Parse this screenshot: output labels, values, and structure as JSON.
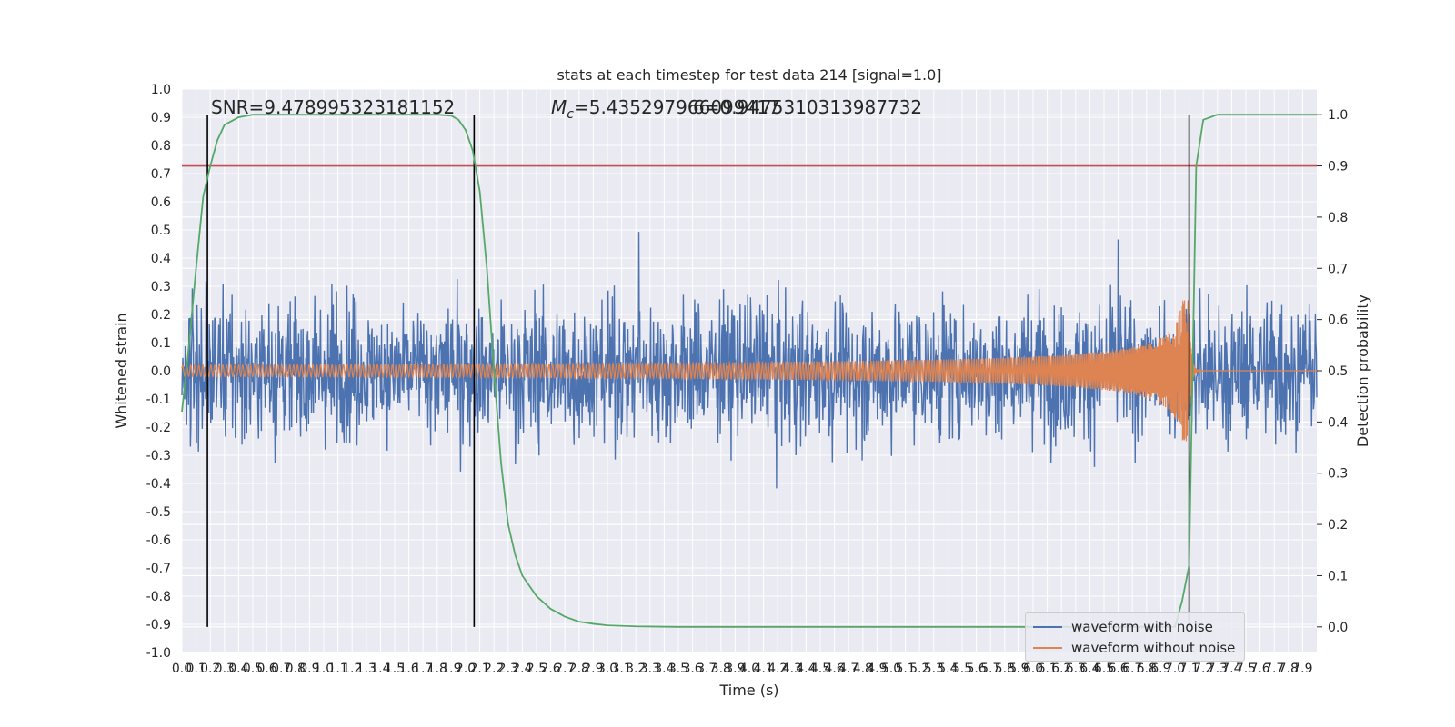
{
  "chart_data": {
    "type": "line",
    "title": "stats at each timestep for test data 214 [signal=1.0]",
    "xlabel": "Time (s)",
    "ylabel_left": "Whitened strain",
    "ylabel_right": "Detection probability",
    "xlim": [
      0.0,
      8.0
    ],
    "ylim_left": [
      -1.0,
      1.0
    ],
    "ylim_right": [
      -0.05,
      1.05
    ],
    "x_ticks": [
      "0.0",
      "0.1",
      "0.2",
      "0.3",
      "0.4",
      "0.5",
      "0.6",
      "0.7",
      "0.8",
      "0.9",
      "1.0",
      "1.1",
      "1.2",
      "1.3",
      "1.4",
      "1.5",
      "1.6",
      "1.7",
      "1.8",
      "1.9",
      "2.0",
      "2.1",
      "2.2",
      "2.3",
      "2.4",
      "2.5",
      "2.6",
      "2.7",
      "2.8",
      "2.9",
      "3.0",
      "3.1",
      "3.2",
      "3.3",
      "3.4",
      "3.5",
      "3.6",
      "3.7",
      "3.8",
      "3.9",
      "4.0",
      "4.1",
      "4.2",
      "4.3",
      "4.4",
      "4.5",
      "4.6",
      "4.7",
      "4.8",
      "4.9",
      "5.0",
      "5.1",
      "5.2",
      "5.3",
      "5.4",
      "5.5",
      "5.6",
      "5.7",
      "5.8",
      "5.9",
      "6.0",
      "6.1",
      "6.2",
      "6.3",
      "6.4",
      "6.5",
      "6.6",
      "6.7",
      "6.8",
      "6.9",
      "7.0",
      "7.1",
      "7.2",
      "7.3",
      "7.4",
      "7.5",
      "7.6",
      "7.7",
      "7.8",
      "7.9"
    ],
    "y_ticks_left": [
      "-1.0",
      "-0.9",
      "-0.8",
      "-0.7",
      "-0.6",
      "-0.5",
      "-0.4",
      "-0.3",
      "-0.2",
      "-0.1",
      "0.0",
      "0.1",
      "0.2",
      "0.3",
      "0.4",
      "0.5",
      "0.6",
      "0.7",
      "0.8",
      "0.9",
      "1.0"
    ],
    "y_ticks_right": [
      "0.0",
      "0.1",
      "0.2",
      "0.3",
      "0.4",
      "0.5",
      "0.6",
      "0.7",
      "0.8",
      "0.9",
      "1.0"
    ],
    "annotations": {
      "snr": "SNR=9.478995323181152",
      "mc_prefix": "M",
      "mc_sub": "c",
      "mc_value": "=5.435297966099417",
      "overlap": "6=0.9475310313987732"
    },
    "threshold_right": 0.9,
    "vertical_lines_x": [
      0.18,
      2.06,
      7.1
    ],
    "series": [
      {
        "name": "waveform with noise",
        "color": "#4c72b0",
        "kind": "noise",
        "rms": 0.17,
        "n": 2400
      },
      {
        "name": "waveform without noise",
        "color": "#dd8452",
        "kind": "chirp",
        "start_amplitude": 0.02,
        "merger_x": 7.1,
        "merger_amplitude": 0.25
      },
      {
        "color": "#55a868",
        "kind": "probability",
        "x": [
          0.0,
          0.05,
          0.1,
          0.15,
          0.2,
          0.25,
          0.3,
          0.4,
          0.5,
          0.6,
          0.8,
          1.0,
          1.5,
          1.8,
          1.9,
          1.95,
          2.0,
          2.05,
          2.1,
          2.15,
          2.2,
          2.25,
          2.3,
          2.35,
          2.4,
          2.5,
          2.6,
          2.7,
          2.8,
          2.9,
          3.0,
          3.2,
          3.5,
          4.0,
          5.0,
          6.0,
          6.8,
          6.9,
          7.0,
          7.05,
          7.1,
          7.15,
          7.2,
          7.3,
          7.4,
          7.6,
          8.0
        ],
        "y": [
          0.42,
          0.55,
          0.7,
          0.84,
          0.9,
          0.95,
          0.98,
          0.995,
          1.0,
          1.0,
          1.0,
          1.0,
          1.0,
          1.0,
          0.998,
          0.99,
          0.97,
          0.93,
          0.85,
          0.7,
          0.5,
          0.32,
          0.2,
          0.14,
          0.1,
          0.06,
          0.035,
          0.02,
          0.01,
          0.006,
          0.003,
          0.001,
          0.0,
          0.0,
          0.0,
          0.0,
          0.0,
          0.0,
          0.0,
          0.05,
          0.12,
          0.9,
          0.99,
          1.0,
          1.0,
          1.0,
          1.0
        ]
      },
      {
        "color": "#c44e52",
        "kind": "threshold"
      }
    ],
    "legend": [
      {
        "label": "waveform with noise",
        "color": "#4c72b0"
      },
      {
        "label": "waveform without noise",
        "color": "#dd8452"
      }
    ],
    "legend_position": "lower-right",
    "grid": true,
    "axes_facecolor": "#eaeaf2"
  }
}
